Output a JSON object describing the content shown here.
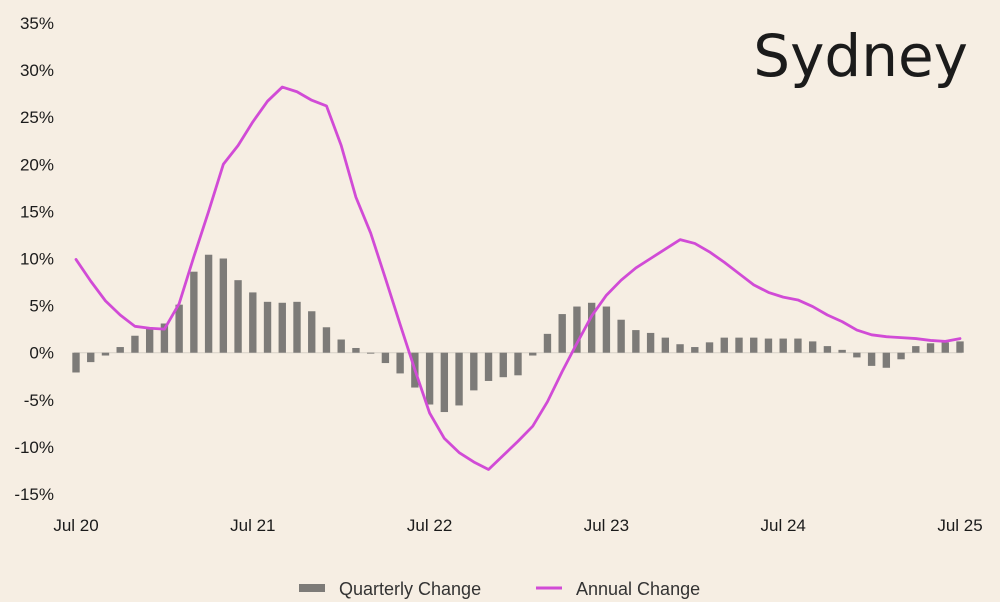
{
  "chart_data": {
    "type": "bar+line",
    "title": "Sydney",
    "xlabel": "",
    "ylabel": "",
    "ylim": [
      -15,
      35
    ],
    "yticks": [
      -15,
      -10,
      -5,
      0,
      5,
      10,
      15,
      20,
      25,
      30,
      35
    ],
    "ytick_labels": [
      "-15%",
      "-10%",
      "-5%",
      "0%",
      "5%",
      "10%",
      "15%",
      "20%",
      "25%",
      "30%",
      "35%"
    ],
    "x_start": "2020-07",
    "x_end": "2025-07",
    "xtick_labels": [
      "Jul 20",
      "Jul 21",
      "Jul 22",
      "Jul 23",
      "Jul 24",
      "Jul 25"
    ],
    "x_months": [
      "2020-07",
      "2020-08",
      "2020-09",
      "2020-10",
      "2020-11",
      "2020-12",
      "2021-01",
      "2021-02",
      "2021-03",
      "2021-04",
      "2021-05",
      "2021-06",
      "2021-07",
      "2021-08",
      "2021-09",
      "2021-10",
      "2021-11",
      "2021-12",
      "2022-01",
      "2022-02",
      "2022-03",
      "2022-04",
      "2022-05",
      "2022-06",
      "2022-07",
      "2022-08",
      "2022-09",
      "2022-10",
      "2022-11",
      "2022-12",
      "2023-01",
      "2023-02",
      "2023-03",
      "2023-04",
      "2023-05",
      "2023-06",
      "2023-07",
      "2023-08",
      "2023-09",
      "2023-10",
      "2023-11",
      "2023-12",
      "2024-01",
      "2024-02",
      "2024-03",
      "2024-04",
      "2024-05",
      "2024-06",
      "2024-07",
      "2024-08",
      "2024-09",
      "2024-10",
      "2024-11",
      "2024-12",
      "2025-01",
      "2025-02",
      "2025-03",
      "2025-04",
      "2025-05",
      "2025-06",
      "2025-07"
    ],
    "series": [
      {
        "name": "Quarterly Change",
        "kind": "bar",
        "color": "#7d7b78",
        "values": [
          -2.1,
          -1.0,
          -0.3,
          0.6,
          1.8,
          2.6,
          3.1,
          5.1,
          8.6,
          10.4,
          10.0,
          7.7,
          6.4,
          5.4,
          5.3,
          5.4,
          4.4,
          2.7,
          1.4,
          0.5,
          -0.1,
          -1.1,
          -2.2,
          -3.7,
          -5.5,
          -6.3,
          -5.6,
          -4.0,
          -3.0,
          -2.6,
          -2.4,
          -0.3,
          2.0,
          4.1,
          4.9,
          5.3,
          4.9,
          3.5,
          2.4,
          2.1,
          1.6,
          0.9,
          0.6,
          1.1,
          1.6,
          1.6,
          1.6,
          1.5,
          1.5,
          1.5,
          1.2,
          0.7,
          0.3,
          -0.5,
          -1.4,
          -1.6,
          -0.7,
          0.7,
          1.0,
          1.1,
          1.2
        ]
      },
      {
        "name": "Annual Change",
        "kind": "line",
        "color": "#d14bd6",
        "values": [
          9.9,
          7.6,
          5.5,
          4.0,
          2.8,
          2.6,
          2.5,
          5.2,
          10.2,
          15.0,
          20.0,
          22.0,
          24.5,
          26.7,
          28.2,
          27.7,
          26.8,
          26.2,
          22.0,
          16.5,
          12.7,
          7.9,
          3.0,
          -1.8,
          -6.4,
          -9.1,
          -10.6,
          -11.6,
          -12.4,
          -10.9,
          -9.4,
          -7.8,
          -5.2,
          -2.0,
          1.0,
          3.9,
          6.1,
          7.7,
          9.0,
          10.0,
          11.0,
          12.0,
          11.6,
          10.7,
          9.6,
          8.4,
          7.2,
          6.4,
          5.9,
          5.6,
          4.9,
          4.0,
          3.3,
          2.4,
          1.9,
          1.7,
          1.6,
          1.5,
          1.3,
          1.2,
          1.5
        ]
      }
    ],
    "legend": {
      "position": "bottom-center",
      "items": [
        "Quarterly Change",
        "Annual Change"
      ]
    },
    "grid": false
  }
}
